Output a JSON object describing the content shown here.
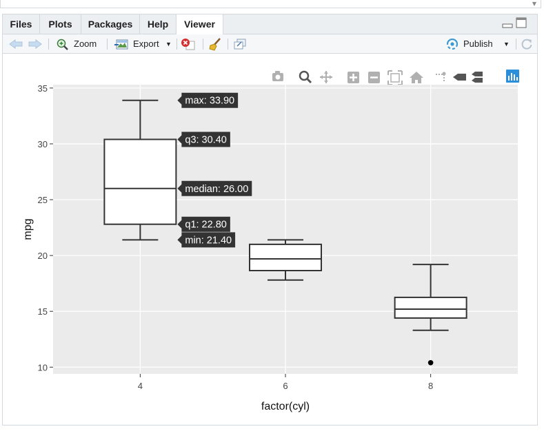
{
  "tabs": [
    {
      "label": "Files",
      "active": false
    },
    {
      "label": "Plots",
      "active": false
    },
    {
      "label": "Packages",
      "active": false
    },
    {
      "label": "Help",
      "active": false
    },
    {
      "label": "Viewer",
      "active": true
    }
  ],
  "toolbar": {
    "zoom_label": "Zoom",
    "export_label": "Export",
    "publish_label": "Publish"
  },
  "modebar_icons": [
    "camera-icon",
    "zoom-icon",
    "pan-icon",
    "zoom-in-icon",
    "zoom-out-icon",
    "autoscale-icon",
    "reset-axes-icon",
    "spike-lines-icon",
    "hover-closest-icon",
    "hover-compare-icon",
    "plotly-logo-icon"
  ],
  "colors": {
    "panel_bg": "#ebebeb",
    "grid": "#ffffff",
    "box_fill": "#ffffff",
    "box_line": "#333333",
    "tooltip_bg": "#333333",
    "publish_accent": "#3d9ad1"
  },
  "chart_data": {
    "type": "box",
    "xlabel": "factor(cyl)",
    "ylabel": "mpg",
    "categories": [
      "4",
      "6",
      "8"
    ],
    "ylim": [
      9.4,
      35.3
    ],
    "yticks": [
      10,
      15,
      20,
      25,
      30,
      35
    ],
    "ytick_labels": [
      "10",
      "15",
      "20",
      "25",
      "30",
      "35"
    ],
    "grid": true,
    "boxes": [
      {
        "category": "4",
        "min": 21.4,
        "q1": 22.8,
        "median": 26.0,
        "q3": 30.4,
        "max": 33.9,
        "outliers": []
      },
      {
        "category": "6",
        "min": 17.8,
        "q1": 18.65,
        "median": 19.7,
        "q3": 21.0,
        "max": 21.4,
        "outliers": []
      },
      {
        "category": "8",
        "min": 13.3,
        "q1": 14.4,
        "median": 15.2,
        "q3": 16.25,
        "max": 19.2,
        "outliers": [
          10.4
        ]
      }
    ],
    "hover": {
      "category": "4",
      "labels": [
        "max: 33.90",
        "q3: 30.40",
        "median: 26.00",
        "q1: 22.80",
        "min: 21.40"
      ],
      "values": [
        33.9,
        30.4,
        26.0,
        22.8,
        21.4
      ]
    }
  }
}
